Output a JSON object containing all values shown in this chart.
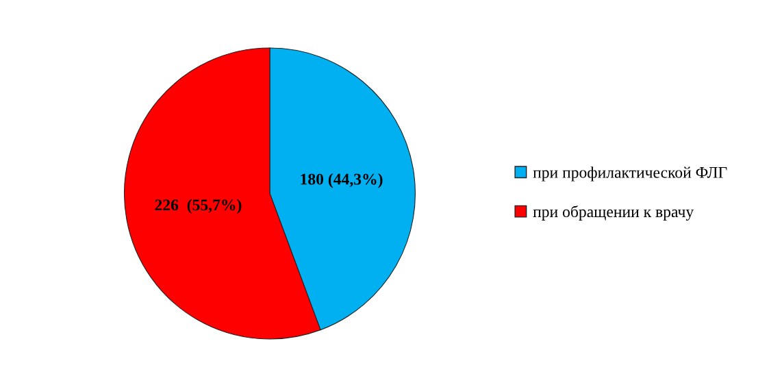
{
  "chart_data": {
    "type": "pie",
    "categories": [
      "при профилактической ФЛГ",
      "при обращении к врачу"
    ],
    "values": [
      180,
      226
    ],
    "colors": [
      "#00b0f0",
      "#ff0000"
    ],
    "value_labels": [
      "180 (44,3%)",
      "226  (55,7%)"
    ],
    "legend": "right"
  }
}
